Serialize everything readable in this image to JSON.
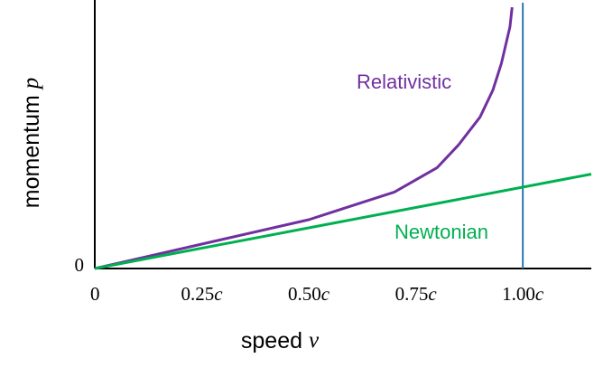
{
  "chart_data": {
    "type": "line",
    "x_label": "speed v",
    "y_label": "momentum p",
    "xlim": [
      0,
      1.16
    ],
    "ylim": [
      0,
      3.3
    ],
    "xticks": [
      0,
      {
        "value": 0.25,
        "label": "0.25c"
      },
      {
        "value": 0.5,
        "label": "0.50c"
      },
      {
        "value": 0.75,
        "label": "0.75c"
      },
      {
        "value": 1,
        "label": "1.00c"
      }
    ],
    "yticks": [
      0
    ],
    "vline_x": 1,
    "vline_color": "#2e75b6",
    "series": [
      {
        "name": "Relativistic",
        "color": "#7030a0",
        "x": [
          0,
          0.25,
          0.5,
          0.6,
          0.7,
          0.8,
          0.85,
          0.9,
          0.93,
          0.95,
          0.97,
          0.975
        ],
        "values": [
          0,
          0.3,
          0.6,
          0.77,
          0.94,
          1.24,
          1.52,
          1.86,
          2.19,
          2.52,
          2.97,
          3.21
        ]
      },
      {
        "name": "Newtonian",
        "color": "#00b050",
        "x": [
          0,
          1.16
        ],
        "values": [
          0,
          1.16
        ]
      }
    ]
  }
}
